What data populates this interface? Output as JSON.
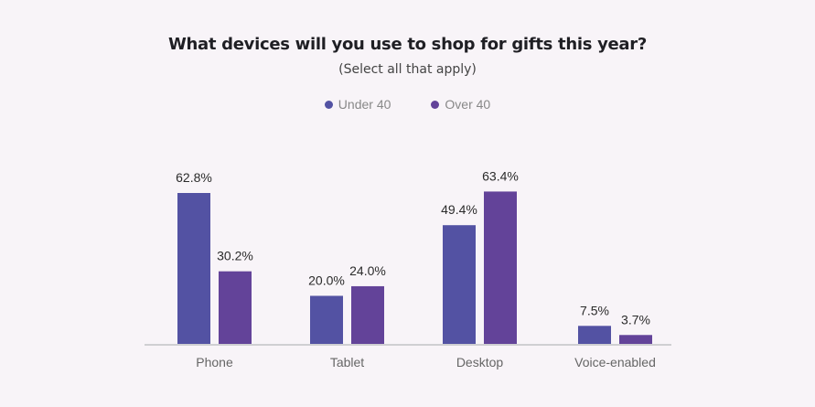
{
  "chart_data": {
    "type": "bar",
    "title": "What devices will you use to shop for gifts this year?",
    "subtitle": "(Select all that apply)",
    "categories": [
      "Phone",
      "Tablet",
      "Desktop",
      "Voice-enabled"
    ],
    "series": [
      {
        "name": "Under 40",
        "color": "#5352a3",
        "values": [
          62.8,
          20.0,
          49.4,
          7.5
        ],
        "labels": [
          "62.8%",
          "20.0%",
          "49.4%",
          "7.5%"
        ]
      },
      {
        "name": "Over 40",
        "color": "#634399",
        "values": [
          30.2,
          24.0,
          63.4,
          3.7
        ],
        "labels": [
          "30.2%",
          "24.0%",
          "63.4%",
          "3.7%"
        ]
      }
    ],
    "xlabel": "",
    "ylabel": "",
    "ylim": [
      0,
      70
    ],
    "grid": false,
    "legend_position": "top-center",
    "value_format": "percent"
  }
}
